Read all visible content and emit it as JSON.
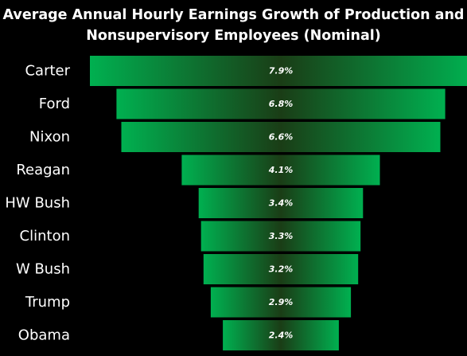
{
  "chart_data": {
    "type": "bar",
    "orientation": "horizontal",
    "layout": "funnel-centered",
    "title": "Average Annual Hourly Earnings Growth of Production and Nonsupervisory Employees (Nominal)",
    "categories": [
      "Carter",
      "Ford",
      "Nixon",
      "Reagan",
      "HW Bush",
      "Clinton",
      "W Bush",
      "Trump",
      "Obama"
    ],
    "values": [
      7.9,
      6.8,
      6.6,
      4.1,
      3.4,
      3.3,
      3.2,
      2.9,
      2.4
    ],
    "value_labels": [
      "7.9%",
      "6.8%",
      "6.6%",
      "4.1%",
      "3.4%",
      "3.3%",
      "3.2%",
      "2.9%",
      "2.4%"
    ],
    "unit": "%",
    "grid": false,
    "legend": false
  },
  "colors": {
    "background": "#000000",
    "bar_edge": "#00b050",
    "bar_center": "#1a3d16",
    "text": "#ffffff"
  }
}
